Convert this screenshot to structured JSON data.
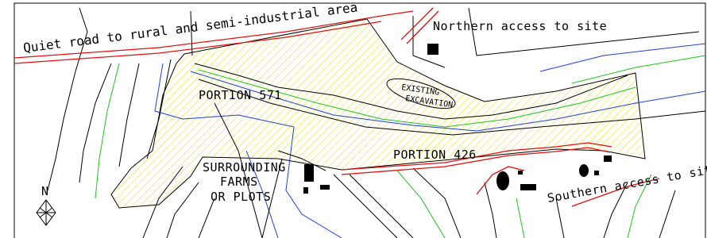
{
  "labels": {
    "road": "Quiet road to rural and semi-industrial area",
    "northern_access": "Northern access to site",
    "excavation": [
      "EXISTING",
      "EXCAVATION"
    ],
    "portion_571": "PORTION 571",
    "portion_426": "PORTION 426",
    "surrounding": [
      "SURROUNDING",
      "FARMS",
      "OR PLOTS"
    ],
    "southern_access": "Southern access to site",
    "north": "N"
  }
}
